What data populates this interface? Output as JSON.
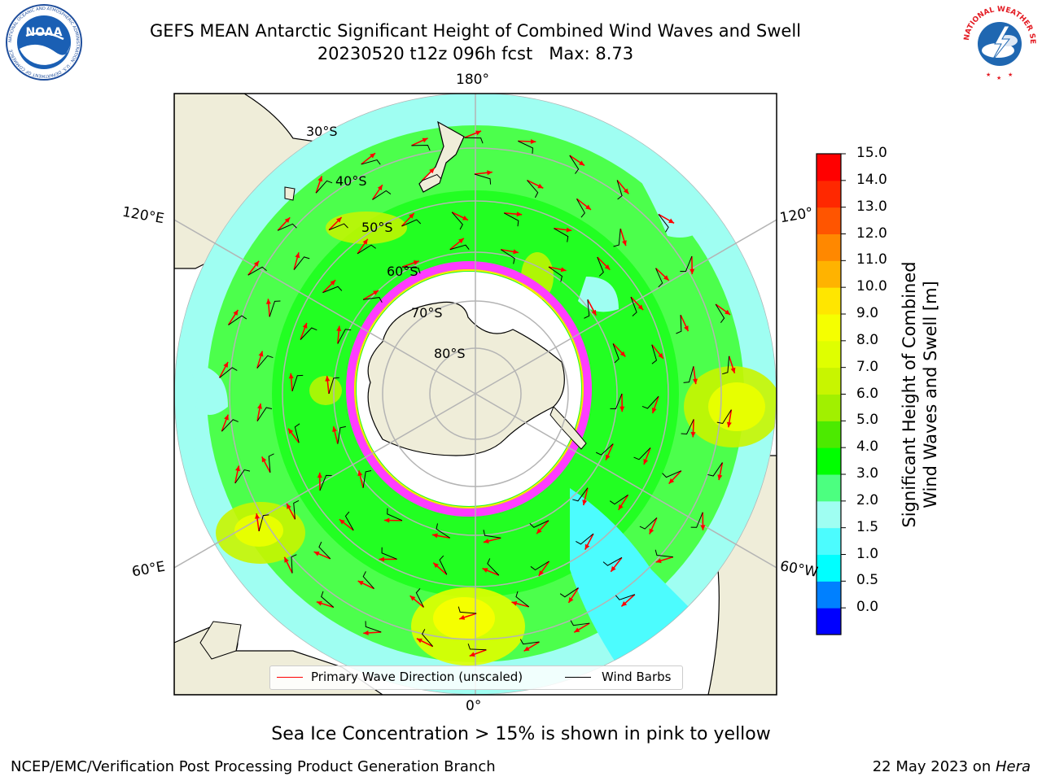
{
  "title": {
    "line1": "GEFS MEAN Antarctic Significant Height of Combined Wind Waves and Swell",
    "line2": "20230520 t12z 096h fcst   Max: 8.73"
  },
  "map": {
    "projection": "south-polar-stereographic",
    "meridian_labels": {
      "top": "180°",
      "bottom": "0°",
      "upper_left": "120°E",
      "lower_left": "60°E",
      "upper_right": "120°",
      "lower_right": "60°W"
    },
    "latitude_labels": [
      "30°S",
      "40°S",
      "50°S",
      "60°S",
      "70°S",
      "80°S"
    ],
    "colors": {
      "land": "#efedd9",
      "ocean_low": "#9ffef2",
      "ocean_mid": "#4cff4c",
      "ocean_high": "#e7ff00",
      "sea_ice": "#ff3cff",
      "ice_shelf": "#ffffff",
      "gridline": "#b4b4b4"
    }
  },
  "legend": {
    "wave": {
      "label": "Primary Wave Direction (unscaled)",
      "color": "#ff0000"
    },
    "wind": {
      "label": "Wind Barbs",
      "color": "#000000"
    }
  },
  "colorbar": {
    "label_line1": "Significant Height of Combined",
    "label_line2": "Wind Waves and Swell [m]",
    "ticks": [
      "15.0",
      "14.0",
      "13.0",
      "12.0",
      "11.0",
      "10.0",
      "9.0",
      "8.0",
      "7.0",
      "6.0",
      "5.0",
      "4.0",
      "3.0",
      "2.0",
      "1.5",
      "1.0",
      "0.5",
      "0.0"
    ],
    "colors_bottom_to_top": [
      "#0000ff",
      "#0080ff",
      "#00ffff",
      "#4cfcfe",
      "#9ffef2",
      "#4cff80",
      "#00ff00",
      "#4cea00",
      "#a1f000",
      "#c8f500",
      "#dfff00",
      "#f5ff00",
      "#ffe600",
      "#ffb300",
      "#ff8800",
      "#ff5500",
      "#ff2800",
      "#ff0000"
    ]
  },
  "notes": {
    "sea_ice": "Sea Ice Concentration > 15% is shown in pink to yellow",
    "footer_left": "NCEP/EMC/Verification Post Processing Product Generation Branch",
    "footer_date": "22 May 2023 on ",
    "footer_host": "Hera"
  },
  "logos": {
    "noaa": "NOAA",
    "noaa_ring_text": "NATIONAL OCEANIC AND ATMOSPHERIC ADMINISTRATION · U.S. DEPARTMENT OF COMMERCE",
    "nws_ring_text": "NATIONAL WEATHER SERVICE"
  }
}
